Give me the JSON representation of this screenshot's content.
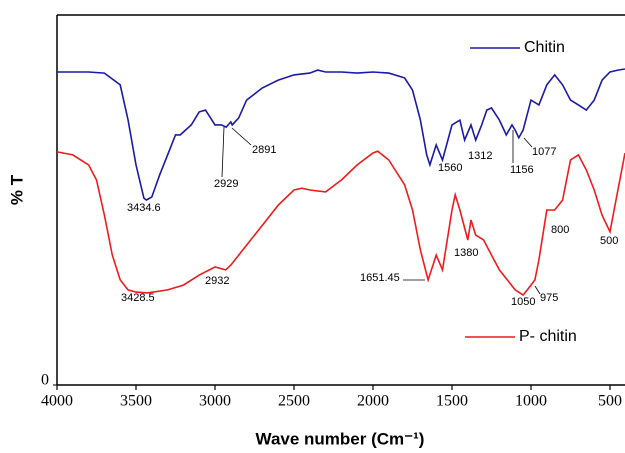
{
  "chart_data": {
    "type": "line",
    "x_label": "Wave number (Cm⁻¹)",
    "y_label": "% T",
    "xlim": [
      4000,
      405
    ],
    "xticks": [
      4000,
      3500,
      3000,
      2500,
      2000,
      1500,
      1000,
      500
    ],
    "ylim": [
      0,
      100
    ],
    "yticks": [
      0
    ],
    "series": [
      {
        "name": "Chitin",
        "color": "#1a1aa6",
        "x": [
          4000,
          3800,
          3700,
          3600,
          3550,
          3500,
          3450,
          3434,
          3400,
          3350,
          3300,
          3250,
          3220,
          3150,
          3100,
          3060,
          3000,
          2960,
          2929,
          2900,
          2891,
          2850,
          2800,
          2700,
          2600,
          2500,
          2400,
          2350,
          2300,
          2200,
          2100,
          2000,
          1900,
          1800,
          1750,
          1700,
          1660,
          1640,
          1600,
          1560,
          1500,
          1450,
          1420,
          1380,
          1350,
          1312,
          1280,
          1250,
          1200,
          1156,
          1120,
          1100,
          1077,
          1050,
          1000,
          950,
          900,
          850,
          800,
          750,
          700,
          650,
          600,
          550,
          500,
          450,
          405
        ],
        "values": [
          84.6,
          84.6,
          84.3,
          81.1,
          71.6,
          59.5,
          50.5,
          50.0,
          50.8,
          56.8,
          62.2,
          67.6,
          67.6,
          70.3,
          73.8,
          74.3,
          70.3,
          70.3,
          69.7,
          71.1,
          70.3,
          72.2,
          77.0,
          80.3,
          82.4,
          83.8,
          84.3,
          85.1,
          84.6,
          84.6,
          84.3,
          84.6,
          84.3,
          83.0,
          79.7,
          71.6,
          62.2,
          59.5,
          64.9,
          60.8,
          70.3,
          71.6,
          66.2,
          70.3,
          66.2,
          70.3,
          74.3,
          74.9,
          71.6,
          67.6,
          70.3,
          68.9,
          66.8,
          68.9,
          77.0,
          75.7,
          81.1,
          83.8,
          81.1,
          77.0,
          75.7,
          74.3,
          77.0,
          82.4,
          84.6,
          85.1,
          85.4
        ]
      },
      {
        "name": "P- chitin",
        "color": "#ee1c1c",
        "x": [
          4000,
          3900,
          3800,
          3750,
          3700,
          3650,
          3600,
          3550,
          3500,
          3428,
          3300,
          3200,
          3100,
          3000,
          2932,
          2900,
          2800,
          2700,
          2600,
          2500,
          2450,
          2400,
          2300,
          2200,
          2100,
          2000,
          1970,
          1900,
          1800,
          1750,
          1700,
          1651,
          1620,
          1600,
          1560,
          1500,
          1480,
          1450,
          1400,
          1380,
          1350,
          1300,
          1250,
          1200,
          1150,
          1100,
          1050,
          1000,
          975,
          950,
          900,
          850,
          800,
          750,
          700,
          650,
          600,
          550,
          500,
          450,
          405
        ],
        "values": [
          63.0,
          62.2,
          59.5,
          55.4,
          45.9,
          35.1,
          28.4,
          25.7,
          25.1,
          24.9,
          25.7,
          27.0,
          29.7,
          31.9,
          31.1,
          32.4,
          37.8,
          43.2,
          48.6,
          52.7,
          53.2,
          52.7,
          52.2,
          55.4,
          59.5,
          62.7,
          63.2,
          60.8,
          54.1,
          47.3,
          36.5,
          28.4,
          32.4,
          35.1,
          31.1,
          47.3,
          51.4,
          47.3,
          39.2,
          44.6,
          40.5,
          39.2,
          35.1,
          31.1,
          28.4,
          25.7,
          24.3,
          27.0,
          28.4,
          33.8,
          47.3,
          47.3,
          50.0,
          60.8,
          62.2,
          58.1,
          52.7,
          45.9,
          41.4,
          52.7,
          62.7
        ]
      }
    ],
    "annotations": [
      "3434.6",
      "2929",
      "2891",
      "1560",
      "1312",
      "1156",
      "1077",
      "3428.5",
      "2932",
      "1651.45",
      "1380",
      "1050",
      "975",
      "800",
      "500"
    ]
  }
}
